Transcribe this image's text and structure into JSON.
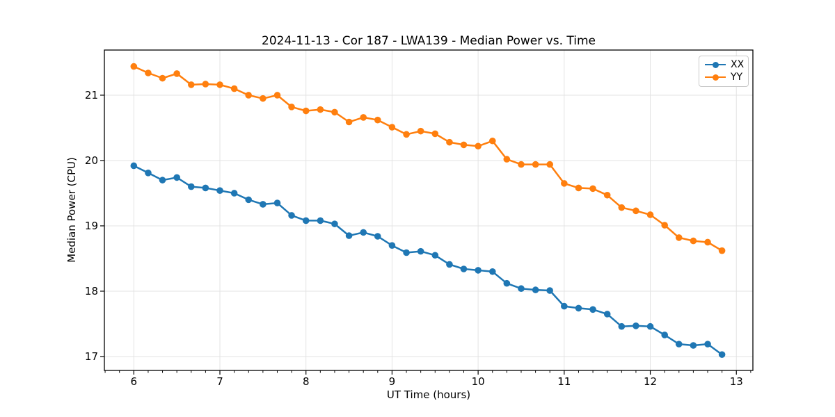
{
  "figure": {
    "title": "2024-11-13 - Cor 187 - LWA139 - Median Power vs. Time",
    "xlabel": "UT Time (hours)",
    "ylabel": "Median Power (CPU)"
  },
  "legend": {
    "items": [
      {
        "label": "XX",
        "color": "#1f77b4"
      },
      {
        "label": "YY",
        "color": "#ff7f0e"
      }
    ]
  },
  "chart_data": {
    "type": "line",
    "title": "2024-11-13 - Cor 187 - LWA139 - Median Power vs. Time",
    "xlabel": "UT Time (hours)",
    "ylabel": "Median Power (CPU)",
    "grid": true,
    "legend_position": "upper right",
    "xlim": [
      5.658,
      13.192
    ],
    "ylim": [
      16.787,
      21.691
    ],
    "xticks": [
      6,
      7,
      8,
      9,
      10,
      11,
      12,
      13
    ],
    "yticks": [
      17,
      18,
      19,
      20,
      21
    ],
    "x_minor_step": 0.1666667,
    "grid_color": "#e3e3e3",
    "spine_color": "#000000",
    "text_color": "#000000",
    "x": [
      6.0,
      6.167,
      6.333,
      6.5,
      6.667,
      6.833,
      7.0,
      7.167,
      7.333,
      7.5,
      7.667,
      7.833,
      8.0,
      8.167,
      8.333,
      8.5,
      8.667,
      8.833,
      9.0,
      9.167,
      9.333,
      9.5,
      9.667,
      9.833,
      10.0,
      10.167,
      10.333,
      10.5,
      10.667,
      10.833,
      11.0,
      11.167,
      11.333,
      11.5,
      11.667,
      11.833,
      12.0,
      12.167,
      12.333,
      12.5,
      12.667,
      12.833
    ],
    "series": [
      {
        "name": "XX",
        "color": "#1f77b4",
        "values": [
          19.92,
          19.81,
          19.7,
          19.74,
          19.6,
          19.58,
          19.54,
          19.5,
          19.4,
          19.33,
          19.35,
          19.16,
          19.08,
          19.08,
          19.03,
          18.85,
          18.9,
          18.84,
          18.7,
          18.59,
          18.61,
          18.55,
          18.41,
          18.34,
          18.32,
          18.3,
          18.12,
          18.04,
          18.02,
          18.01,
          17.77,
          17.74,
          17.72,
          17.65,
          17.46,
          17.47,
          17.46,
          17.33,
          17.19,
          17.17,
          17.19,
          17.03
        ]
      },
      {
        "name": "YY",
        "color": "#ff7f0e",
        "values": [
          21.44,
          21.34,
          21.26,
          21.33,
          21.16,
          21.17,
          21.16,
          21.1,
          21.0,
          20.95,
          21.0,
          20.82,
          20.76,
          20.78,
          20.74,
          20.59,
          20.66,
          20.62,
          20.51,
          20.4,
          20.45,
          20.41,
          20.28,
          20.24,
          20.22,
          20.3,
          20.02,
          19.94,
          19.94,
          19.94,
          19.65,
          19.58,
          19.57,
          19.47,
          19.28,
          19.23,
          19.17,
          19.01,
          18.82,
          18.77,
          18.75,
          18.62
        ]
      }
    ]
  }
}
